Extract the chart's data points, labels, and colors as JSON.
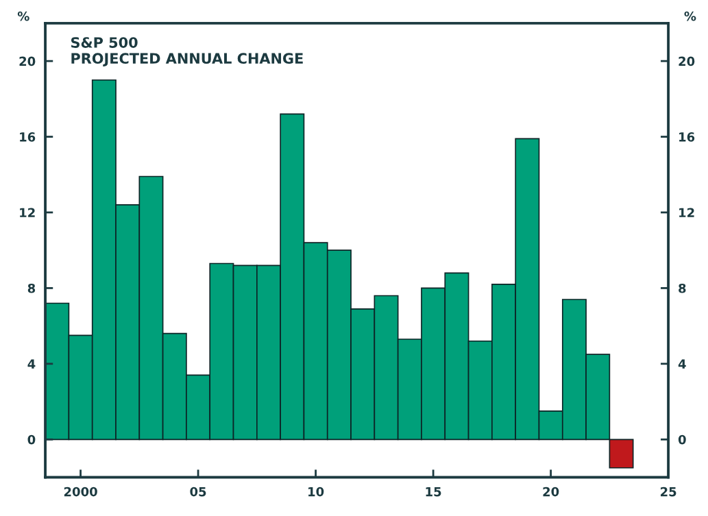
{
  "chart_data": {
    "type": "bar",
    "title": "S&P 500",
    "subtitle": "PROJECTED ANNUAL CHANGE",
    "ylabel": "%",
    "y2label": "%",
    "x": [
      1999,
      2000,
      2001,
      2002,
      2003,
      2004,
      2005,
      2006,
      2007,
      2008,
      2009,
      2010,
      2011,
      2012,
      2013,
      2014,
      2015,
      2016,
      2017,
      2018,
      2019,
      2020,
      2021,
      2022,
      2023
    ],
    "values": [
      7.2,
      5.5,
      19.0,
      12.4,
      13.9,
      5.6,
      3.4,
      9.3,
      9.2,
      9.2,
      17.2,
      10.4,
      10.0,
      6.9,
      7.6,
      5.3,
      8.0,
      8.8,
      5.2,
      8.2,
      15.9,
      1.5,
      7.4,
      4.5,
      -1.5
    ],
    "colors": [
      "#00a07a",
      "#00a07a",
      "#00a07a",
      "#00a07a",
      "#00a07a",
      "#00a07a",
      "#00a07a",
      "#00a07a",
      "#00a07a",
      "#00a07a",
      "#00a07a",
      "#00a07a",
      "#00a07a",
      "#00a07a",
      "#00a07a",
      "#00a07a",
      "#00a07a",
      "#00a07a",
      "#00a07a",
      "#00a07a",
      "#00a07a",
      "#00a07a",
      "#00a07a",
      "#00a07a",
      "#c0191c"
    ],
    "xlim": [
      1998.5,
      2025
    ],
    "xticks": [
      2000,
      {
        "value": 2005,
        "label": "05"
      },
      {
        "value": 2010,
        "label": "10"
      },
      {
        "value": 2015,
        "label": "15"
      },
      {
        "value": 2020,
        "label": "20"
      },
      {
        "value": 2025,
        "label": "25"
      }
    ],
    "ylim": [
      -2,
      22
    ],
    "yticks": [
      0,
      4,
      8,
      12,
      16,
      20
    ],
    "y2lim": [
      -2,
      22
    ],
    "y2ticks": [
      0,
      4,
      8,
      12,
      16,
      20
    ],
    "grid": false,
    "legend": false
  }
}
